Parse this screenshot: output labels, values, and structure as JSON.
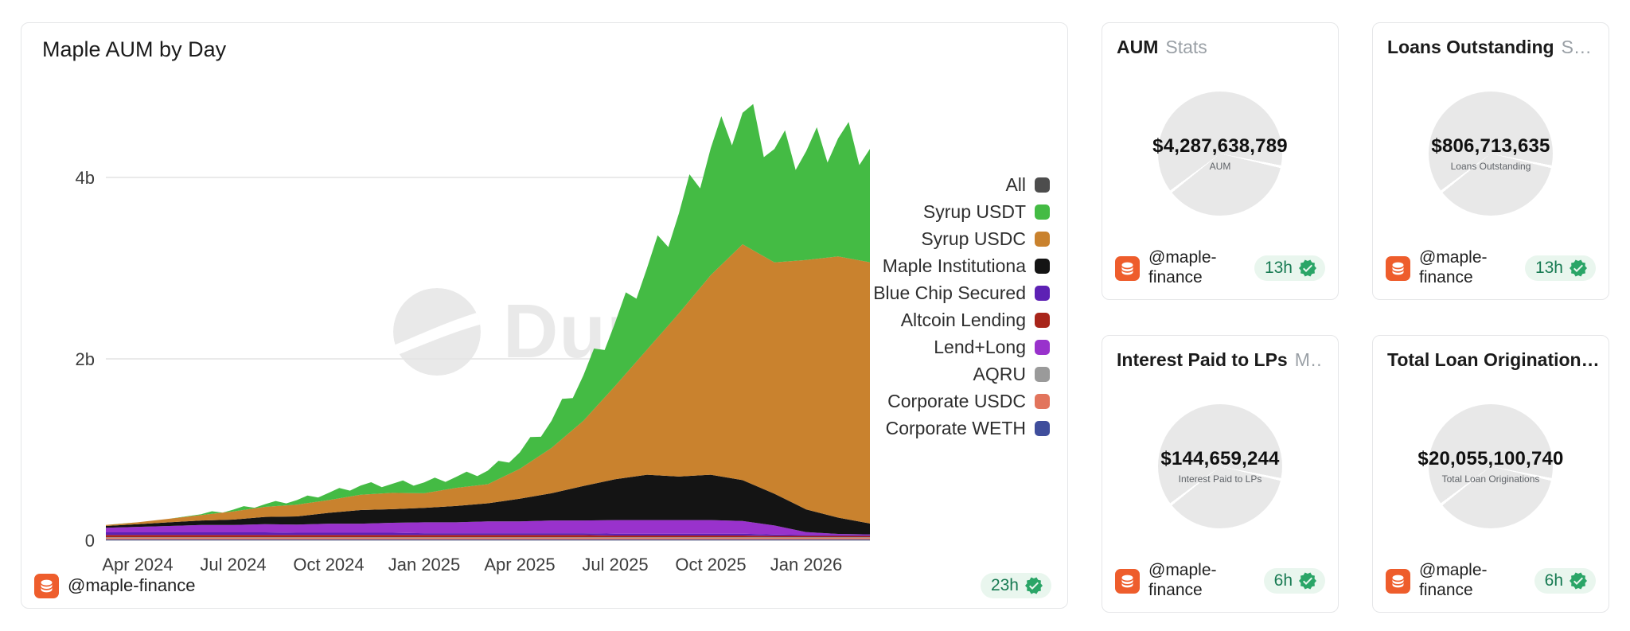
{
  "colors": {
    "accent_orange": "#ee5d2c",
    "badge_bg": "#e9f6ee",
    "badge_text": "#177a52",
    "check_green": "#2aa567",
    "card_border": "#e5e6e8",
    "watermark_gray": "#e9e9e9",
    "pie_gray": "#e8e8e8"
  },
  "icons": {
    "author_icon": "dune-database-icon",
    "verified_icon": "check-seal-icon",
    "watermark_icon": "dune-logo-icon"
  },
  "chart_card": {
    "title": "Maple AUM by Day",
    "watermark": "Dune",
    "footer": {
      "author": "@maple-finance",
      "updated": "23h"
    }
  },
  "chart_data": {
    "type": "area",
    "stacked": true,
    "title": "Maple AUM by Day",
    "unit": "USD (billions)",
    "ylim": [
      0,
      4.95
    ],
    "grid": "horizontal",
    "legend_position": "right",
    "top_jitter": 0.05,
    "x": [
      "Mar 2024",
      "Apr 2024",
      "May 2024",
      "Jun 2024",
      "Jul 2024",
      "Aug 2024",
      "Sep 2024",
      "Oct 2024",
      "Nov 2024",
      "Dec 2024",
      "Jan 2025",
      "Feb 2025",
      "Mar 2025",
      "Apr 2025",
      "May 2025",
      "Jun 2025",
      "Jul 2025",
      "Aug 2025",
      "Sep 2025",
      "Oct 2025",
      "Nov 2025",
      "Dec 2025",
      "Jan 2026",
      "Feb 2026",
      "Mar 2026"
    ],
    "x_ticks": [
      {
        "index": 1,
        "label": "Apr 2024"
      },
      {
        "index": 4,
        "label": "Jul 2024"
      },
      {
        "index": 7,
        "label": "Oct 2024"
      },
      {
        "index": 10,
        "label": "Jan 2025"
      },
      {
        "index": 13,
        "label": "Apr 2025"
      },
      {
        "index": 16,
        "label": "Jul 2025"
      },
      {
        "index": 19,
        "label": "Oct 2025"
      },
      {
        "index": 22,
        "label": "Jan 2026"
      }
    ],
    "y_ticks": [
      {
        "value": 0,
        "label": "0"
      },
      {
        "value": 2,
        "label": "2b"
      },
      {
        "value": 4,
        "label": "4b"
      }
    ],
    "legend": [
      {
        "label": "All",
        "color": "#4d4d4d"
      },
      {
        "label": "Syrup USDT",
        "color": "#44bb44"
      },
      {
        "label": "Syrup USDC",
        "color": "#c9822e"
      },
      {
        "label": "Maple Institutiona",
        "color": "#141414"
      },
      {
        "label": "Blue Chip Secured",
        "color": "#5d21b4"
      },
      {
        "label": "Altcoin Lending",
        "color": "#a8251a"
      },
      {
        "label": "Lend+Long",
        "color": "#9932cc"
      },
      {
        "label": "AQRU",
        "color": "#9a9a9a"
      },
      {
        "label": "Corporate USDC",
        "color": "#e2745c"
      },
      {
        "label": "Corporate WETH",
        "color": "#3f4e9c"
      }
    ],
    "series": [
      {
        "name": "Corporate WETH",
        "color": "#3f4e9c",
        "values": [
          0.01,
          0.01,
          0.01,
          0.01,
          0.01,
          0.01,
          0.01,
          0.01,
          0.01,
          0.01,
          0.01,
          0.01,
          0.01,
          0.01,
          0.01,
          0.01,
          0.01,
          0.01,
          0.01,
          0.01,
          0.01,
          0.01,
          0.01,
          0.01,
          0.01
        ]
      },
      {
        "name": "Corporate USDC",
        "color": "#e2745c",
        "values": [
          0.015,
          0.015,
          0.015,
          0.015,
          0.015,
          0.015,
          0.015,
          0.015,
          0.015,
          0.015,
          0.015,
          0.015,
          0.015,
          0.015,
          0.015,
          0.015,
          0.015,
          0.015,
          0.015,
          0.015,
          0.015,
          0.015,
          0.015,
          0.015,
          0.015
        ]
      },
      {
        "name": "AQRU",
        "color": "#9a9a9a",
        "values": [
          0.008,
          0.008,
          0.008,
          0.008,
          0.008,
          0.008,
          0.008,
          0.008,
          0.008,
          0.008,
          0.008,
          0.008,
          0.008,
          0.008,
          0.008,
          0.008,
          0.008,
          0.008,
          0.008,
          0.008,
          0.008,
          0.008,
          0.008,
          0.008,
          0.008
        ]
      },
      {
        "name": "Altcoin Lending",
        "color": "#a8251a",
        "values": [
          0.025,
          0.025,
          0.025,
          0.025,
          0.025,
          0.025,
          0.025,
          0.025,
          0.025,
          0.025,
          0.025,
          0.025,
          0.025,
          0.025,
          0.025,
          0.025,
          0.02,
          0.02,
          0.02,
          0.02,
          0.02,
          0.015,
          0.015,
          0.015,
          0.015
        ]
      },
      {
        "name": "Blue Chip Secured",
        "color": "#5d21b4",
        "values": [
          0.03,
          0.03,
          0.03,
          0.03,
          0.03,
          0.03,
          0.025,
          0.025,
          0.025,
          0.025,
          0.02,
          0.02,
          0.02,
          0.02,
          0.02,
          0.02,
          0.02,
          0.02,
          0.02,
          0.02,
          0.02,
          0.015,
          0.012,
          0.012,
          0.012
        ]
      },
      {
        "name": "Lend+Long",
        "color": "#9932cc",
        "values": [
          0.05,
          0.06,
          0.07,
          0.08,
          0.08,
          0.09,
          0.09,
          0.1,
          0.1,
          0.11,
          0.12,
          0.12,
          0.13,
          0.13,
          0.14,
          0.14,
          0.15,
          0.15,
          0.15,
          0.15,
          0.14,
          0.1,
          0.03,
          0.01,
          0.005
        ]
      },
      {
        "name": "Maple Institutional",
        "color": "#141414",
        "values": [
          0.02,
          0.03,
          0.04,
          0.05,
          0.06,
          0.08,
          0.09,
          0.12,
          0.15,
          0.15,
          0.16,
          0.18,
          0.2,
          0.25,
          0.3,
          0.38,
          0.45,
          0.5,
          0.48,
          0.5,
          0.45,
          0.35,
          0.25,
          0.18,
          0.12
        ]
      },
      {
        "name": "Syrup USDC",
        "color": "#c9822e",
        "values": [
          0.01,
          0.02,
          0.04,
          0.06,
          0.09,
          0.11,
          0.13,
          0.14,
          0.17,
          0.18,
          0.16,
          0.2,
          0.21,
          0.33,
          0.5,
          0.72,
          1.03,
          1.38,
          1.8,
          2.2,
          2.6,
          2.55,
          2.75,
          2.88,
          2.88
        ]
      },
      {
        "name": "Syrup USDT",
        "color": "#44bb44",
        "values": [
          0,
          0,
          0,
          0.01,
          0.02,
          0.03,
          0.05,
          0.08,
          0.1,
          0.1,
          0.12,
          0.12,
          0.15,
          0.18,
          0.3,
          0.5,
          0.7,
          0.9,
          1.1,
          1.4,
          1.45,
          1.25,
          1.2,
          1.3,
          1.25
        ]
      }
    ]
  },
  "cards": [
    {
      "title": "AUM",
      "subtitle": "Stats",
      "value": "$4,287,638,789",
      "label": "AUM",
      "author": "@maple-finance",
      "updated": "13h"
    },
    {
      "title": "Loans Outstanding",
      "subtitle": "St…",
      "value": "$806,713,635",
      "label": "Loans Outstanding",
      "author": "@maple-finance",
      "updated": "13h"
    },
    {
      "title": "Interest Paid to LPs",
      "subtitle": "M…",
      "value": "$144,659,244",
      "label": "Interest Paid to LPs",
      "author": "@maple-finance",
      "updated": "6h"
    },
    {
      "title": "Total Loan Origination…",
      "subtitle": "",
      "value": "$20,055,100,740",
      "label": "Total Loan Originations",
      "author": "@maple-finance",
      "updated": "6h"
    }
  ]
}
